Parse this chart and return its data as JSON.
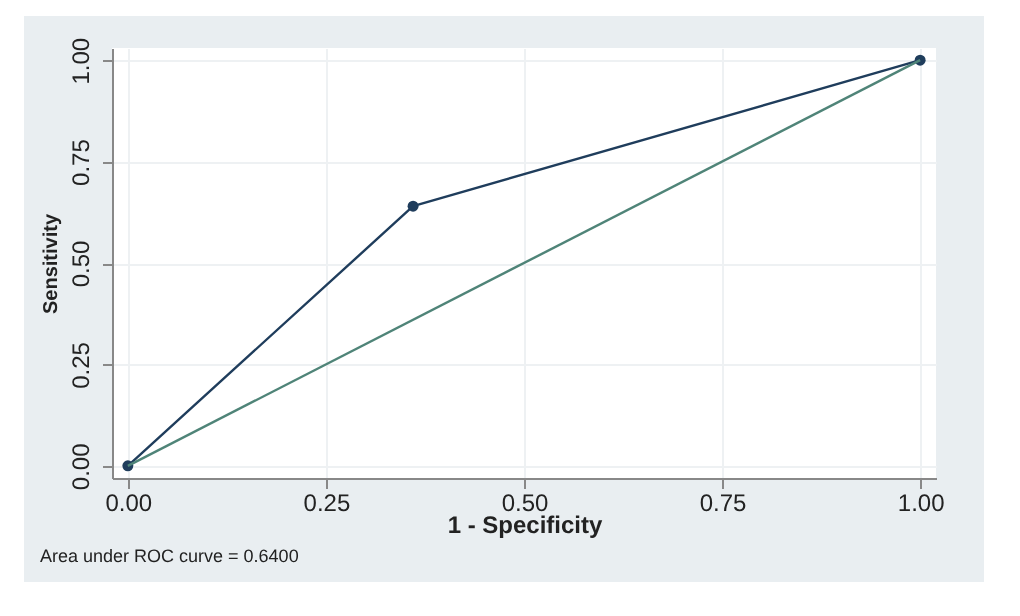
{
  "chart_data": {
    "type": "line",
    "xlabel": "1 - Specificity",
    "ylabel": "Sensitivity",
    "xlim": [
      -0.02,
      1.02
    ],
    "ylim": [
      -0.03,
      1.03
    ],
    "xticks": [
      {
        "value": 0,
        "label": "0.00"
      },
      {
        "value": 0.25,
        "label": "0.25"
      },
      {
        "value": 0.5,
        "label": "0.50"
      },
      {
        "value": 0.75,
        "label": "0.75"
      },
      {
        "value": 1,
        "label": "1.00"
      }
    ],
    "yticks": [
      {
        "value": 0,
        "label": "0.00"
      },
      {
        "value": 0.25,
        "label": "0.25"
      },
      {
        "value": 0.5,
        "label": "0.50"
      },
      {
        "value": 0.75,
        "label": "0.75"
      },
      {
        "value": 1,
        "label": "1.00"
      }
    ],
    "grid": true,
    "annotations": [
      "Area under ROC curve = 0.6400"
    ],
    "series": [
      {
        "color": "#1f3d5c",
        "x": [
          0,
          0.36,
          1
        ],
        "values": [
          0,
          0.64,
          1
        ],
        "marker": "circle"
      },
      {
        "color": "#4f8478",
        "x": [
          0,
          1
        ],
        "values": [
          0,
          1
        ],
        "marker": "none"
      }
    ]
  }
}
